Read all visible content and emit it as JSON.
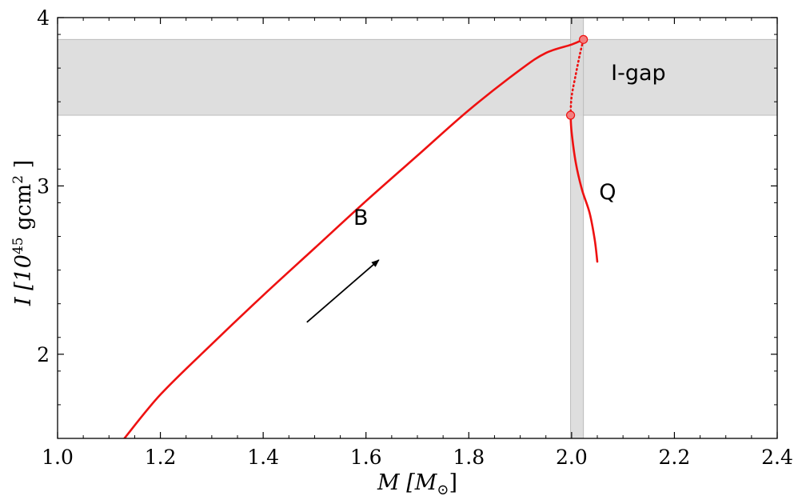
{
  "chart_data": {
    "type": "line",
    "xlim": [
      1.0,
      2.4
    ],
    "ylim": [
      1.5,
      4.0
    ],
    "x_ticks": [
      "1.0",
      "1.2",
      "1.4",
      "1.6",
      "1.8",
      "2.0",
      "2.2",
      "2.4"
    ],
    "y_ticks": [
      "2",
      "3",
      "4"
    ],
    "xlabel": {
      "main": "M [M",
      "sub": "⊙",
      "tail": "]"
    },
    "ylabel": {
      "main": "I [10",
      "sup": "45",
      "mid": " gcm",
      "sup2": "2",
      "tail": " ]"
    },
    "grid": false,
    "bands": [
      {
        "orientation": "horizontal",
        "range": [
          3.42,
          3.87
        ],
        "color": "#d9d9d9",
        "label": "I-gap"
      },
      {
        "orientation": "vertical",
        "range": [
          1.998,
          2.023
        ],
        "color": "#d9d9d9"
      }
    ],
    "series": [
      {
        "color": "#ee1111",
        "style": "solid",
        "x": [
          1.13,
          1.2,
          1.3,
          1.4,
          1.5,
          1.6,
          1.7,
          1.8,
          1.9,
          1.95,
          2.0,
          2.023
        ],
        "y": [
          1.5,
          1.76,
          2.06,
          2.35,
          2.63,
          2.91,
          3.18,
          3.45,
          3.69,
          3.79,
          3.84,
          3.87
        ]
      },
      {
        "color": "#ee1111",
        "style": "dotted",
        "x": [
          1.998,
          2.0,
          2.008,
          2.016,
          2.023
        ],
        "y": [
          3.42,
          3.53,
          3.66,
          3.78,
          3.87
        ]
      },
      {
        "color": "#ee1111",
        "style": "solid",
        "x": [
          1.998,
          2.0,
          2.008,
          2.02,
          2.035,
          2.045,
          2.05
        ],
        "y": [
          3.42,
          3.32,
          3.14,
          2.98,
          2.84,
          2.68,
          2.55
        ]
      }
    ],
    "markers": [
      {
        "x": 1.998,
        "y": 3.42
      },
      {
        "x": 2.023,
        "y": 3.87
      }
    ],
    "arrow": {
      "from": [
        1.485,
        2.19
      ],
      "to": [
        1.625,
        2.56
      ]
    },
    "annotations": [
      {
        "text": "B",
        "x": 1.59,
        "y": 2.77
      },
      {
        "text": "Q",
        "x": 2.07,
        "y": 2.92
      },
      {
        "text": "I-gap",
        "x": 2.13,
        "y": 3.63
      }
    ]
  }
}
